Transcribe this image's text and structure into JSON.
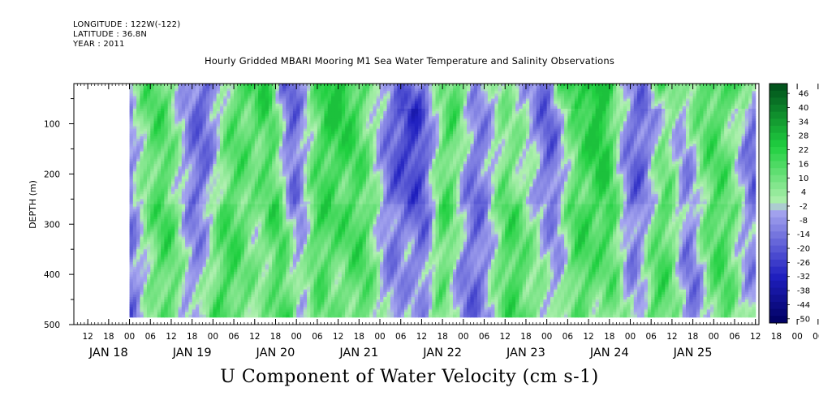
{
  "header": {
    "longitude": "LONGITUDE : 122W(-122)",
    "latitude": "LATITUDE : 36.8N",
    "year": "YEAR : 2011"
  },
  "colors": {
    "negative_dark": "#000060",
    "negative_mid": "#2020c0",
    "negative_light": "#a8a8f0",
    "positive_light": "#b0f0b0",
    "positive_mid": "#20d040",
    "positive_dark": "#004d1a"
  },
  "chart_data": {
    "type": "heatmap",
    "title": "Hourly Gridded MBARI Mooring M1 Sea Water Temperature and Salinity Observations",
    "xlabel": "U Component of Water Velocity (cm s-1)",
    "ylabel": "DEPTH (m)",
    "y_axis": {
      "range": [
        20,
        500
      ],
      "inverted": true,
      "ticks": [
        100,
        200,
        300,
        400,
        500
      ],
      "tick_labels": [
        "100",
        "200",
        "300",
        "400",
        "500"
      ],
      "data_range": [
        20,
        485
      ]
    },
    "x_axis": {
      "range": [
        "2011-01-17T08:00",
        "2011-01-25T13:00"
      ],
      "data_range": [
        "2011-01-18T00:00",
        "2011-01-25T12:00"
      ],
      "hour_ticks": [
        "12",
        "18",
        "00",
        "06",
        "12",
        "18",
        "00",
        "06",
        "12",
        "18",
        "00",
        "06",
        "12",
        "18",
        "00",
        "06",
        "12",
        "18",
        "00",
        "06",
        "12",
        "18",
        "00",
        "06",
        "12",
        "18",
        "00",
        "06",
        "12",
        "18",
        "00",
        "06",
        "12",
        "18",
        "00",
        "06",
        "12"
      ],
      "date_labels": [
        "JAN 18",
        "JAN 19",
        "JAN 20",
        "JAN 21",
        "JAN 22",
        "JAN 23",
        "JAN 24",
        "JAN 25"
      ]
    },
    "colorbar": {
      "units": "cm s-1",
      "levels": [
        "46",
        "40",
        "34",
        "28",
        "22",
        "16",
        "10",
        "4",
        "-2",
        "-8",
        "-14",
        "-20",
        "-26",
        "-32",
        "-38",
        "-44",
        "-50"
      ],
      "min": -50,
      "max": 52
    },
    "pattern": {
      "positive_bands_hours": [
        6,
        26,
        45,
        58,
        71,
        82,
        107,
        124,
        146,
        154,
        170,
        186,
        203,
        218,
        232,
        262,
        286,
        300
      ],
      "negative_bands_hours": [
        14,
        36,
        64,
        92,
        100,
        117,
        138,
        162,
        176,
        196,
        225,
        245,
        255,
        274,
        294
      ],
      "surface_green_patches_hours": [
        97,
        142,
        168,
        193,
        203,
        225,
        248
      ],
      "value_range_shown": [
        -34,
        28
      ]
    }
  }
}
